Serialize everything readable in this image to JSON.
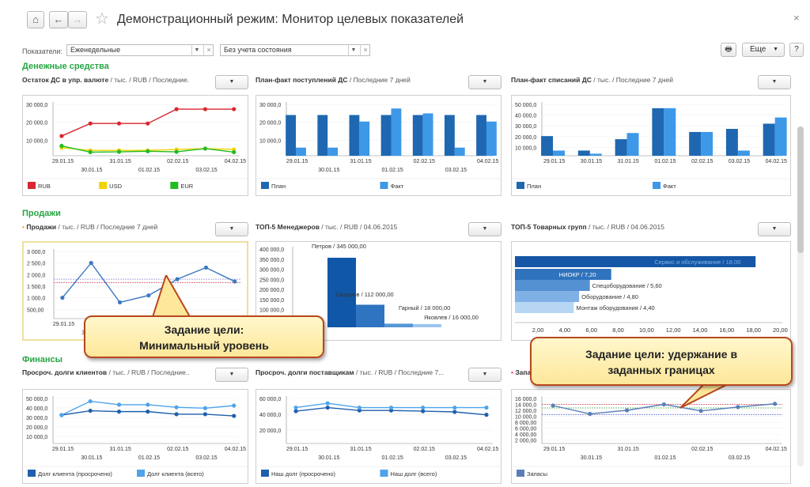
{
  "window": {
    "title": "Демонстрационный режим: Монитор целевых показателей",
    "close": "×"
  },
  "nav": {
    "home": "⌂",
    "back": "←",
    "forward": "→",
    "star": "☆"
  },
  "filters": {
    "label": "Показатели:",
    "period": "Еженедельные",
    "state": "Без учета состояния"
  },
  "toolbar": {
    "print": "🖶",
    "more": "Еще",
    "help": "?"
  },
  "sections": {
    "cash": "Денежные средства",
    "sales": "Продажи",
    "finance": "Финансы"
  },
  "callouts": {
    "min_level": [
      "Задание цели:",
      "Минимальный уровень"
    ],
    "bounds": [
      "Задание цели: удержание в",
      "заданных границах"
    ]
  },
  "dropdown_arrow": "▼",
  "charts": [
    {
      "id": "c1",
      "title": "Остаток ДС в упр. валюте",
      "sub": " / тыс. / RUB / Последние.",
      "type": "line",
      "chart_data": {
        "type": "line",
        "x": [
          "29.01.15",
          "30.01.15",
          "31.01.15",
          "01.02.15",
          "02.02.15",
          "03.02.15",
          "04.02.15"
        ],
        "yticks": [
          "30 000,0",
          "20 000,0",
          "10 000,0"
        ],
        "ymax": 30000,
        "series": [
          {
            "name": "RUB",
            "color": "#d9272e",
            "values": [
              11000,
              18000,
              18000,
              18000,
              26000,
              26000,
              26000
            ]
          },
          {
            "name": "USD",
            "color": "#f2d300",
            "values": [
              4500,
              3000,
              3000,
              3000,
              3500,
              4000,
              3500
            ]
          },
          {
            "name": "EUR",
            "color": "#22bb22",
            "values": [
              5500,
              2000,
              2200,
              2500,
              2200,
              4000,
              2000
            ]
          }
        ]
      }
    },
    {
      "id": "c2",
      "title": "План-факт поступлений ДС",
      "sub": " / Последние 7 дней",
      "type": "bar",
      "chart_data": {
        "type": "bar",
        "x": [
          "29.01.15",
          "30.01.15",
          "31.01.15",
          "01.02.15",
          "02.02.15",
          "03.02.15",
          "04.02.15"
        ],
        "yticks": [
          "30 000,0",
          "20 000,0",
          "10 000,0"
        ],
        "ymax": 33000,
        "series": [
          {
            "name": "План",
            "color": "#1f67b1",
            "values": [
              25000,
              25000,
              25000,
              25000,
              25000,
              25000,
              25000
            ]
          },
          {
            "name": "Факт",
            "color": "#3d98e8",
            "values": [
              5000,
              5000,
              21000,
              29000,
              26000,
              5000,
              21000
            ]
          }
        ]
      }
    },
    {
      "id": "c3",
      "title": "План-факт списаний ДС",
      "sub": " / тыс. / Последние 7 дней",
      "type": "bar",
      "chart_data": {
        "type": "bar",
        "x": [
          "29.01.15",
          "30.01.15",
          "31.01.15",
          "01.02.15",
          "02.02.15",
          "03.02.15",
          "04.02.15"
        ],
        "yticks": [
          "50 000,0",
          "40 000,0",
          "30 000,0",
          "20 000,0",
          "10 000,0"
        ],
        "ymax": 52000,
        "series": [
          {
            "name": "План",
            "color": "#1f67b1",
            "values": [
              19000,
              5000,
              16000,
              46000,
              23000,
              26000,
              31000
            ]
          },
          {
            "name": "Факт",
            "color": "#3d98e8",
            "values": [
              5000,
              2000,
              22000,
              46000,
              23000,
              5000,
              37000
            ]
          }
        ]
      }
    },
    {
      "id": "c4",
      "title": "Продажи",
      "sub": " / тыс. / RUB / Последние 7 дней",
      "dot": "•",
      "type": "line",
      "chart_data": {
        "type": "line",
        "x": [
          "29.01.15",
          "30.01.15",
          "31.01.15",
          "01.02.15",
          "02.02.15",
          "03.02.15",
          "04.02.15"
        ],
        "yticks": [
          "3 000,0",
          "2 500,0",
          "2 000,0",
          "1 500,0",
          "1 000,0",
          "500,00"
        ],
        "ymax": 3000,
        "series": [
          {
            "name": "Продажи",
            "color": "#3a78c2",
            "values": [
              900,
              2400,
              700,
              1000,
              1700,
              2200,
              1600
            ]
          }
        ],
        "target_lines": [
          {
            "color": "#8a8ad8",
            "value": 1700
          },
          {
            "color": "#d24a5a",
            "value": 1550
          }
        ]
      }
    },
    {
      "id": "c5",
      "title": "ТОП-5 Менеджеров",
      "sub": " / тыс. / RUB / 04.06.2015",
      "type": "stepbar",
      "chart_data": {
        "type": "bar",
        "yticks": [
          "400 000,0",
          "350 000,0",
          "300 000,0",
          "250 000,0",
          "200 000,0",
          "150 000,0",
          "100 000,0",
          "50 000,00"
        ],
        "ymax": 400000,
        "categories": [
          "Петров / 345 000,00",
          "Сидоров / 112 000,00",
          "Гарный / 18 000,00",
          "Яковлев / 16 000,00"
        ],
        "values": [
          345000,
          112000,
          18000,
          16000
        ],
        "colors": [
          "#1057a8",
          "#2e74c0",
          "#5596d6",
          "#9cc6ee"
        ]
      }
    },
    {
      "id": "c6",
      "title": "ТОП-5 Товарных групп",
      "sub": " / тыс. / RUB / 04.06.2015",
      "type": "hbar",
      "chart_data": {
        "type": "bar",
        "categories": [
          "Сервис и обслуживание / 18,00",
          "НИОКР / 7,20",
          "Спецоборудование / 5,60",
          "Оборудование / 4,80",
          "Монтаж оборудования / 4,40"
        ],
        "values": [
          18,
          7.2,
          5.6,
          4.8,
          4.4
        ],
        "colors": [
          "#1557a6",
          "#2f73bd",
          "#5491d3",
          "#7fb0e6",
          "#b7d6f4"
        ],
        "xticks": [
          "2,00",
          "4,00",
          "6,00",
          "8,00",
          "10,00",
          "12,00",
          "14,00",
          "16,00",
          "18,00",
          "20,00"
        ],
        "xmax": 20
      }
    },
    {
      "id": "c7",
      "title": "Просроч. долги клиентов",
      "sub": " / тыс. / RUB / Последние..",
      "type": "line",
      "chart_data": {
        "type": "line",
        "x": [
          "29.01.15",
          "30.01.15",
          "31.01.15",
          "01.02.15",
          "02.02.15",
          "03.02.15",
          "04.02.15"
        ],
        "yticks": [
          "50 000,0",
          "40 000,0",
          "30 000,0",
          "20 000,0",
          "10 000,0"
        ],
        "ymax": 55000,
        "series": [
          {
            "name": "Долг клиента (просрочено)",
            "color": "#1f5fad",
            "values": [
              33000,
              38000,
              37000,
              37000,
              34000,
              34000,
              32000
            ]
          },
          {
            "name": "Долг клиента (всего)",
            "color": "#4ea3ea",
            "values": [
              33000,
              49000,
              45000,
              45000,
              42000,
              41000,
              44000
            ]
          }
        ]
      }
    },
    {
      "id": "c8",
      "title": "Просроч. долги поставщикам",
      "sub": " / тыс. / RUB / Последние 7...",
      "type": "line",
      "chart_data": {
        "type": "line",
        "x": [
          "29.01.15",
          "30.01.15",
          "31.01.15",
          "01.02.15",
          "02.02.15",
          "03.02.15",
          "04.02.15"
        ],
        "yticks": [
          "60 000,0",
          "40 000,0",
          "20 000,0"
        ],
        "ymax": 66000,
        "series": [
          {
            "name": "Наш долг (просрочено)",
            "color": "#1f5fad",
            "values": [
              45000,
              50000,
              46000,
              46000,
              45000,
              44000,
              40000
            ]
          },
          {
            "name": "Наш долг (всего)",
            "color": "#4ea3ea",
            "values": [
              50000,
              56000,
              50000,
              50000,
              50000,
              50000,
              50000
            ]
          }
        ]
      }
    },
    {
      "id": "c9",
      "title": "Запасы",
      "sub": " / тыс. / RUB / П",
      "dot": "•",
      "type": "line",
      "chart_data": {
        "type": "line",
        "x": [
          "29.01.15",
          "30.01.15",
          "31.01.15",
          "01.02.15",
          "02.02.15",
          "03.02.15",
          "04.02.15"
        ],
        "yticks": [
          "16 000,0",
          "14 000,0",
          "12 000,0",
          "10 000,0",
          "8 000,00",
          "6 000,00",
          "4 000,00",
          "2 000,00"
        ],
        "ymax": 16000,
        "series": [
          {
            "name": "Запасы",
            "color": "#5a7fb8",
            "values": [
              12800,
              10000,
              11200,
              13200,
              11000,
              12300,
              13400
            ]
          }
        ],
        "target_lines": [
          {
            "color": "#d24a5a",
            "value": 13200
          },
          {
            "color": "#4fb24f",
            "value": 12000
          },
          {
            "color": "#4f5fd0",
            "value": 9800
          }
        ]
      }
    }
  ]
}
